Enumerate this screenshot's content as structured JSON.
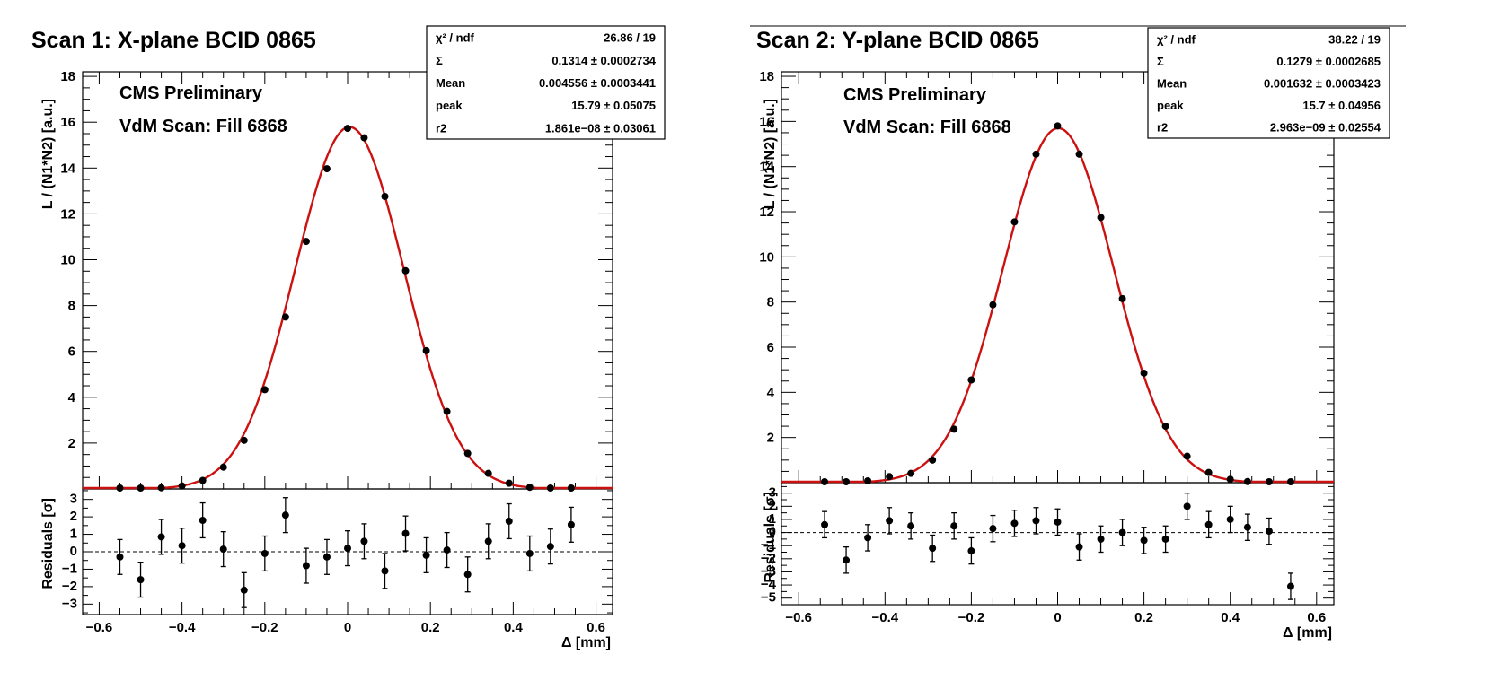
{
  "chart_data": [
    {
      "type": "scatter",
      "title": "Scan 1: X-plane BCID 0865",
      "annotations": [
        "CMS Preliminary",
        "VdM Scan: Fill 6868"
      ],
      "xlabel": "Δ [mm]",
      "ylabel": "L / (N1*N2) [a.u.]",
      "residual_ylabel": "Residuals [σ]",
      "xlim": [
        -0.64,
        0.64
      ],
      "ylim": [
        0,
        18.2
      ],
      "residual_ylim": [
        -3.6,
        3.6
      ],
      "xticks": [
        "−0.6",
        "−0.4",
        "−0.2",
        "0",
        "0.2",
        "0.4",
        "0.6"
      ],
      "yticks": [
        "2",
        "4",
        "6",
        "8",
        "10",
        "12",
        "14",
        "16",
        "18"
      ],
      "residual_yticks": [
        "3",
        "2",
        "1",
        "0",
        "−1",
        "−2",
        "−3"
      ],
      "fit_color": "#cc1111",
      "stats": [
        {
          "label": "χ² / ndf",
          "value": "26.86 / 19"
        },
        {
          "label": "Σ",
          "value": "0.1314 ± 0.0002734"
        },
        {
          "label": "Mean",
          "value": "0.004556 ± 0.0003441"
        },
        {
          "label": "peak",
          "value": "15.79 ± 0.05075"
        },
        {
          "label": "r2",
          "value": "1.861e−08 ± 0.03061"
        }
      ],
      "fit": {
        "sigma": 0.1314,
        "mean": 0.004556,
        "peak": 15.79
      },
      "x": [
        -0.55,
        -0.5,
        -0.45,
        -0.4,
        -0.35,
        -0.3,
        -0.25,
        -0.2,
        -0.15,
        -0.1,
        -0.05,
        0.0,
        0.04,
        0.09,
        0.14,
        0.19,
        0.24,
        0.29,
        0.34,
        0.39,
        0.44,
        0.49,
        0.54
      ],
      "y": [
        0.02,
        0.02,
        0.05,
        0.13,
        0.37,
        0.95,
        2.12,
        4.33,
        7.5,
        10.8,
        13.97,
        15.73,
        15.32,
        12.76,
        9.52,
        6.03,
        3.38,
        1.55,
        0.68,
        0.25,
        0.07,
        0.02,
        0.03
      ],
      "residuals": [
        -0.3,
        -1.6,
        0.85,
        0.35,
        1.8,
        0.15,
        -2.2,
        -0.1,
        2.1,
        -0.8,
        -0.3,
        0.2,
        0.6,
        -1.1,
        1.05,
        -0.2,
        0.1,
        -1.3,
        0.6,
        1.75,
        -0.1,
        0.3,
        1.55
      ],
      "residual_errors": [
        1,
        1,
        1,
        1,
        1,
        1,
        1,
        1,
        1,
        1,
        1,
        1,
        1,
        1,
        1,
        1,
        1,
        1,
        1,
        1,
        1,
        1,
        1
      ]
    },
    {
      "type": "scatter",
      "title": "Scan 2: Y-plane BCID 0865",
      "annotations": [
        "CMS Preliminary",
        "VdM Scan: Fill 6868"
      ],
      "xlabel": "Δ [mm]",
      "ylabel": "L / (N1*N2) [a.u.]",
      "residual_ylabel": "Residuals [σ]",
      "xlim": [
        -0.64,
        0.64
      ],
      "ylim": [
        0,
        18.2
      ],
      "residual_ylim": [
        -5.5,
        3.8
      ],
      "xticks": [
        "−0.6",
        "−0.4",
        "−0.2",
        "0",
        "0.2",
        "0.4",
        "0.6"
      ],
      "yticks": [
        "2",
        "4",
        "6",
        "8",
        "10",
        "12",
        "14",
        "16",
        "18"
      ],
      "residual_yticks": [
        "3",
        "2",
        "1",
        "0",
        "−1",
        "−2",
        "−3",
        "−4",
        "−5"
      ],
      "fit_color": "#cc1111",
      "stats": [
        {
          "label": "χ² / ndf",
          "value": "38.22 / 19"
        },
        {
          "label": "Σ",
          "value": "0.1279 ± 0.0002685"
        },
        {
          "label": "Mean",
          "value": "0.001632 ± 0.0003423"
        },
        {
          "label": "peak",
          "value": "15.7 ± 0.04956"
        },
        {
          "label": "r2",
          "value": "2.963e−09 ± 0.02554"
        }
      ],
      "fit": {
        "sigma": 0.1279,
        "mean": 0.001632,
        "peak": 15.7
      },
      "x": [
        -0.54,
        -0.49,
        -0.44,
        -0.39,
        -0.34,
        -0.29,
        -0.24,
        -0.2,
        -0.15,
        -0.1,
        -0.05,
        0.0,
        0.05,
        0.1,
        0.15,
        0.2,
        0.25,
        0.3,
        0.35,
        0.4,
        0.44,
        0.49,
        0.54
      ],
      "y": [
        0.02,
        0.02,
        0.08,
        0.27,
        0.41,
        1.0,
        2.37,
        4.55,
        7.88,
        11.55,
        14.55,
        15.8,
        14.55,
        11.75,
        8.15,
        4.85,
        2.5,
        1.17,
        0.45,
        0.15,
        0.05,
        0.02,
        0.01
      ],
      "residuals": [
        0.6,
        -2.1,
        -0.4,
        0.9,
        0.5,
        -1.2,
        0.5,
        -1.4,
        0.3,
        0.7,
        0.9,
        0.8,
        -1.1,
        -0.5,
        0.0,
        -0.6,
        -0.5,
        2.0,
        0.6,
        1.0,
        0.4,
        0.1,
        -4.1
      ],
      "residual_errors": [
        1,
        1,
        1,
        1,
        1,
        1,
        1,
        1,
        1,
        1,
        1,
        1,
        1,
        1,
        1,
        1,
        1,
        1,
        1,
        1,
        1,
        1,
        1
      ]
    }
  ]
}
